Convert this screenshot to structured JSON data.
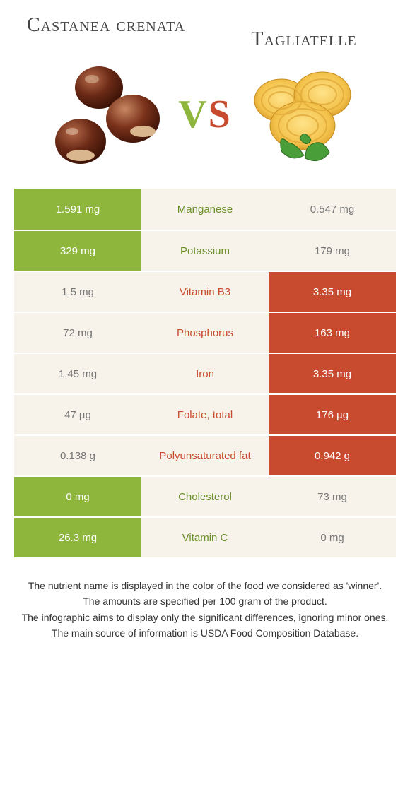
{
  "left_title": "Castanea crenata",
  "right_title": "Tagliatelle",
  "vs_v": "V",
  "vs_s": "S",
  "colors": {
    "left_bg": "#8eb63c",
    "right_bg": "#c94b2f",
    "mid_bg": "#f7f3ea",
    "green_text": "#6a8f28",
    "red_text": "#c94b2f",
    "muted_text": "#777777",
    "page_bg": "#ffffff"
  },
  "fontsizes": {
    "title": 28,
    "vs": 56,
    "cell": 15,
    "notes": 14
  },
  "rows": [
    {
      "nutrient": "Manganese",
      "left": "1.591 mg",
      "right": "0.547 mg",
      "winner": "left"
    },
    {
      "nutrient": "Potassium",
      "left": "329 mg",
      "right": "179 mg",
      "winner": "left"
    },
    {
      "nutrient": "Vitamin B3",
      "left": "1.5 mg",
      "right": "3.35 mg",
      "winner": "right"
    },
    {
      "nutrient": "Phosphorus",
      "left": "72 mg",
      "right": "163 mg",
      "winner": "right"
    },
    {
      "nutrient": "Iron",
      "left": "1.45 mg",
      "right": "3.35 mg",
      "winner": "right"
    },
    {
      "nutrient": "Folate, total",
      "left": "47 µg",
      "right": "176 µg",
      "winner": "right"
    },
    {
      "nutrient": "Polyunsaturated fat",
      "left": "0.138 g",
      "right": "0.942 g",
      "winner": "right"
    },
    {
      "nutrient": "Cholesterol",
      "left": "0 mg",
      "right": "73 mg",
      "winner": "left"
    },
    {
      "nutrient": "Vitamin C",
      "left": "26.3 mg",
      "right": "0 mg",
      "winner": "left"
    }
  ],
  "notes": [
    "The nutrient name is displayed in the color of the food we considered as 'winner'.",
    "The amounts are specified per 100 gram of the product.",
    "The infographic aims to display only the significant differences, ignoring minor ones.",
    "The main source of information is USDA Food Composition Database."
  ]
}
